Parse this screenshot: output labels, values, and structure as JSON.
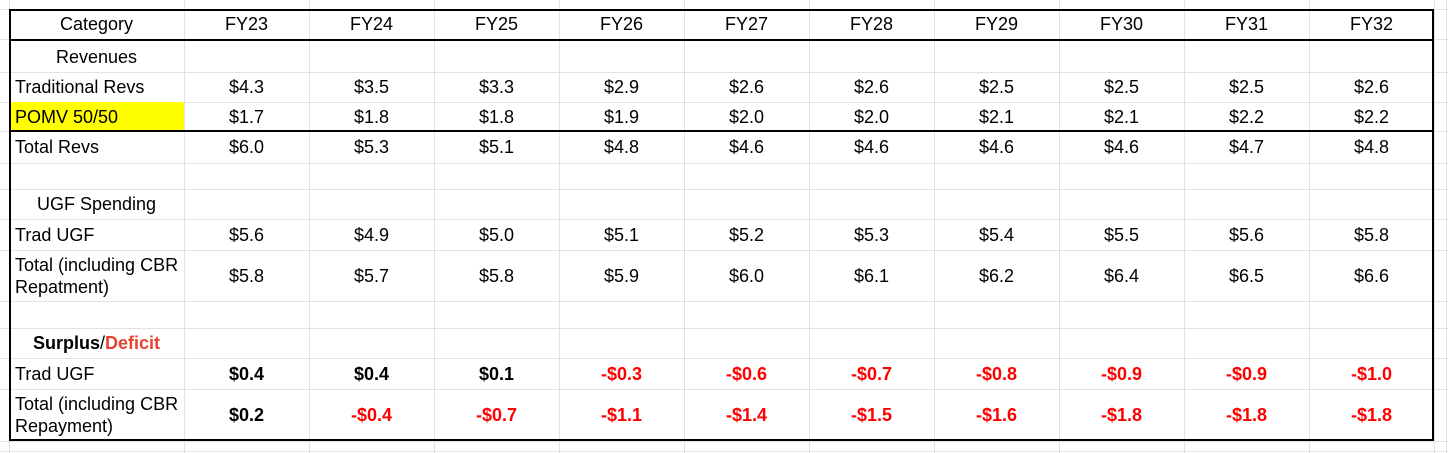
{
  "chart_data": {
    "type": "table",
    "columns": [
      "Category",
      "FY23",
      "FY24",
      "FY25",
      "FY26",
      "FY27",
      "FY28",
      "FY29",
      "FY30",
      "FY31",
      "FY32"
    ],
    "sections": {
      "revenues": "Revenues",
      "ugf_spending": "UGF Spending",
      "surplus_label": "Surplus",
      "slash": "/",
      "deficit_label": "Deficit"
    },
    "rows": {
      "traditional_revs": {
        "label": "Traditional Revs",
        "values": [
          "$4.3",
          "$3.5",
          "$3.3",
          "$2.9",
          "$2.6",
          "$2.6",
          "$2.5",
          "$2.5",
          "$2.5",
          "$2.6"
        ]
      },
      "pomv": {
        "label": "POMV 50/50",
        "values": [
          "$1.7",
          "$1.8",
          "$1.8",
          "$1.9",
          "$2.0",
          "$2.0",
          "$2.1",
          "$2.1",
          "$2.2",
          "$2.2"
        ]
      },
      "total_revs": {
        "label": "Total Revs",
        "values": [
          "$6.0",
          "$5.3",
          "$5.1",
          "$4.8",
          "$4.6",
          "$4.6",
          "$4.6",
          "$4.6",
          "$4.7",
          "$4.8"
        ]
      },
      "trad_ugf_spend": {
        "label": "Trad UGF",
        "values": [
          "$5.6",
          "$4.9",
          "$5.0",
          "$5.1",
          "$5.2",
          "$5.3",
          "$5.4",
          "$5.5",
          "$5.6",
          "$5.8"
        ]
      },
      "total_spend": {
        "label": "Total (including CBR Repatment)",
        "values": [
          "$5.8",
          "$5.7",
          "$5.8",
          "$5.9",
          "$6.0",
          "$6.1",
          "$6.2",
          "$6.4",
          "$6.5",
          "$6.6"
        ]
      },
      "trad_ugf_surplus": {
        "label": "Trad UGF",
        "values": [
          "$0.4",
          "$0.4",
          "$0.1",
          "-$0.3",
          "-$0.6",
          "-$0.7",
          "-$0.8",
          "-$0.9",
          "-$0.9",
          "-$1.0"
        ]
      },
      "total_surplus": {
        "label": "Total (including CBR Repayment)",
        "values": [
          "$0.2",
          "-$0.4",
          "-$0.7",
          "-$1.1",
          "-$1.4",
          "-$1.5",
          "-$1.6",
          "-$1.8",
          "-$1.8",
          "-$1.8"
        ]
      }
    }
  },
  "colors": {
    "highlight": "#ffff00",
    "negative": "#ff0000",
    "deficit_label": "#e8432f",
    "grid": "#e2e2e2"
  }
}
